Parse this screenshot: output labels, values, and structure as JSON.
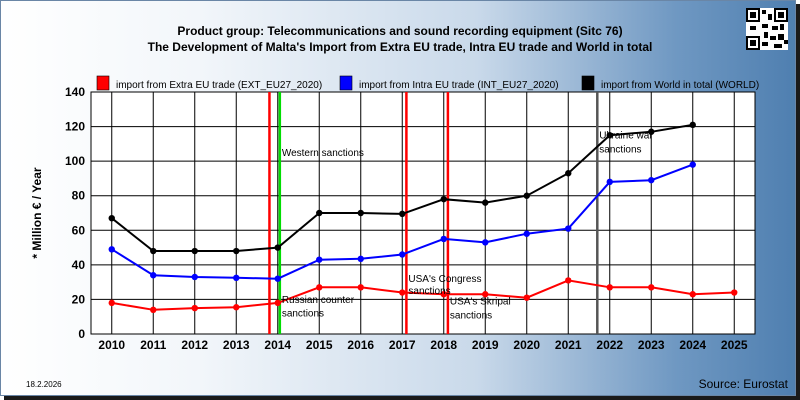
{
  "header": {
    "title_line1": "Product group: Telecommunications and sound recording equipment (Sitc 76)",
    "title_line2": "The Development of Malta's Import from Extra EU trade, Intra EU trade and World in total"
  },
  "footer": {
    "date": "18.2.2026",
    "source": "Source: Eurostat"
  },
  "colors": {
    "extra": "#ff0000",
    "intra": "#0000ff",
    "world": "#000000",
    "green_line": "#00dd00",
    "gray_line": "#555555"
  },
  "chart_data": {
    "type": "line",
    "ylabel": "* Million € / Year",
    "xlabel": "",
    "ylim": [
      0,
      140
    ],
    "yticks": [
      0,
      20,
      40,
      60,
      80,
      100,
      120,
      140
    ],
    "categories": [
      "2010",
      "2011",
      "2012",
      "2013",
      "2014",
      "2015",
      "2016",
      "2017",
      "2018",
      "2019",
      "2020",
      "2021",
      "2022",
      "2023",
      "2024",
      "2025"
    ],
    "grid": true,
    "legend": "top",
    "series": [
      {
        "name": "import from Extra EU trade (EXT_EU27_2020)",
        "color_key": "extra",
        "values": [
          18,
          14,
          15,
          15.5,
          18,
          27,
          27,
          24,
          23,
          23,
          21,
          31,
          27,
          27,
          23,
          24
        ]
      },
      {
        "name": "import from Intra EU trade (INT_EU27_2020)",
        "color_key": "intra",
        "values": [
          49,
          34,
          33,
          32.5,
          32,
          43,
          43.5,
          46,
          55,
          53,
          58,
          61,
          88,
          89,
          98,
          null
        ]
      },
      {
        "name": "import from World in total (WORLD)",
        "color_key": "world",
        "values": [
          67,
          48,
          48,
          48,
          50,
          70,
          70,
          69.5,
          78,
          76,
          80,
          93,
          115,
          117,
          121,
          null
        ]
      }
    ],
    "event_lines": [
      {
        "x": 2013.8,
        "color_key": "extra"
      },
      {
        "x": 2014.05,
        "color_key": "green_line"
      },
      {
        "x": 2017.1,
        "color_key": "extra"
      },
      {
        "x": 2018.1,
        "color_key": "extra"
      },
      {
        "x": 2021.7,
        "color_key": "gray_line"
      }
    ],
    "annotations": [
      {
        "text": "Western sanctions",
        "x": 2014.05,
        "y": 103
      },
      {
        "text": "Russian counter",
        "x": 2014.05,
        "y": 18
      },
      {
        "text": "sanctions",
        "x": 2014.05,
        "y": 10
      },
      {
        "text": "USA's Congress",
        "x": 2017.1,
        "y": 30
      },
      {
        "text": "sanctions",
        "x": 2017.1,
        "y": 23
      },
      {
        "text": "USA's Skripal",
        "x": 2018.1,
        "y": 17
      },
      {
        "text": "sanctions",
        "x": 2018.1,
        "y": 9
      },
      {
        "text": "Ukraine war",
        "x": 2021.7,
        "y": 113
      },
      {
        "text": "sanctions",
        "x": 2021.7,
        "y": 105
      }
    ]
  }
}
